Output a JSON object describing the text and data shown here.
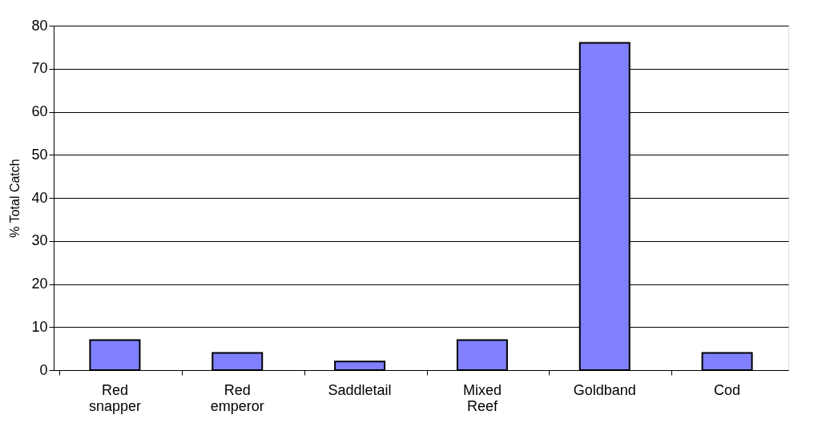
{
  "chart_data": {
    "type": "bar",
    "ylabel": "% Total Catch",
    "categories": [
      "Red snapper",
      "Red emperor",
      "Saddletail",
      "Mixed Reef",
      "Goldband",
      "Cod"
    ],
    "values": [
      7,
      4,
      2,
      7,
      76,
      4
    ],
    "color": "#8080ff",
    "ylim": [
      0,
      80
    ],
    "yticks": [
      0,
      10,
      20,
      30,
      40,
      50,
      60,
      70,
      80
    ],
    "grid": "y"
  }
}
